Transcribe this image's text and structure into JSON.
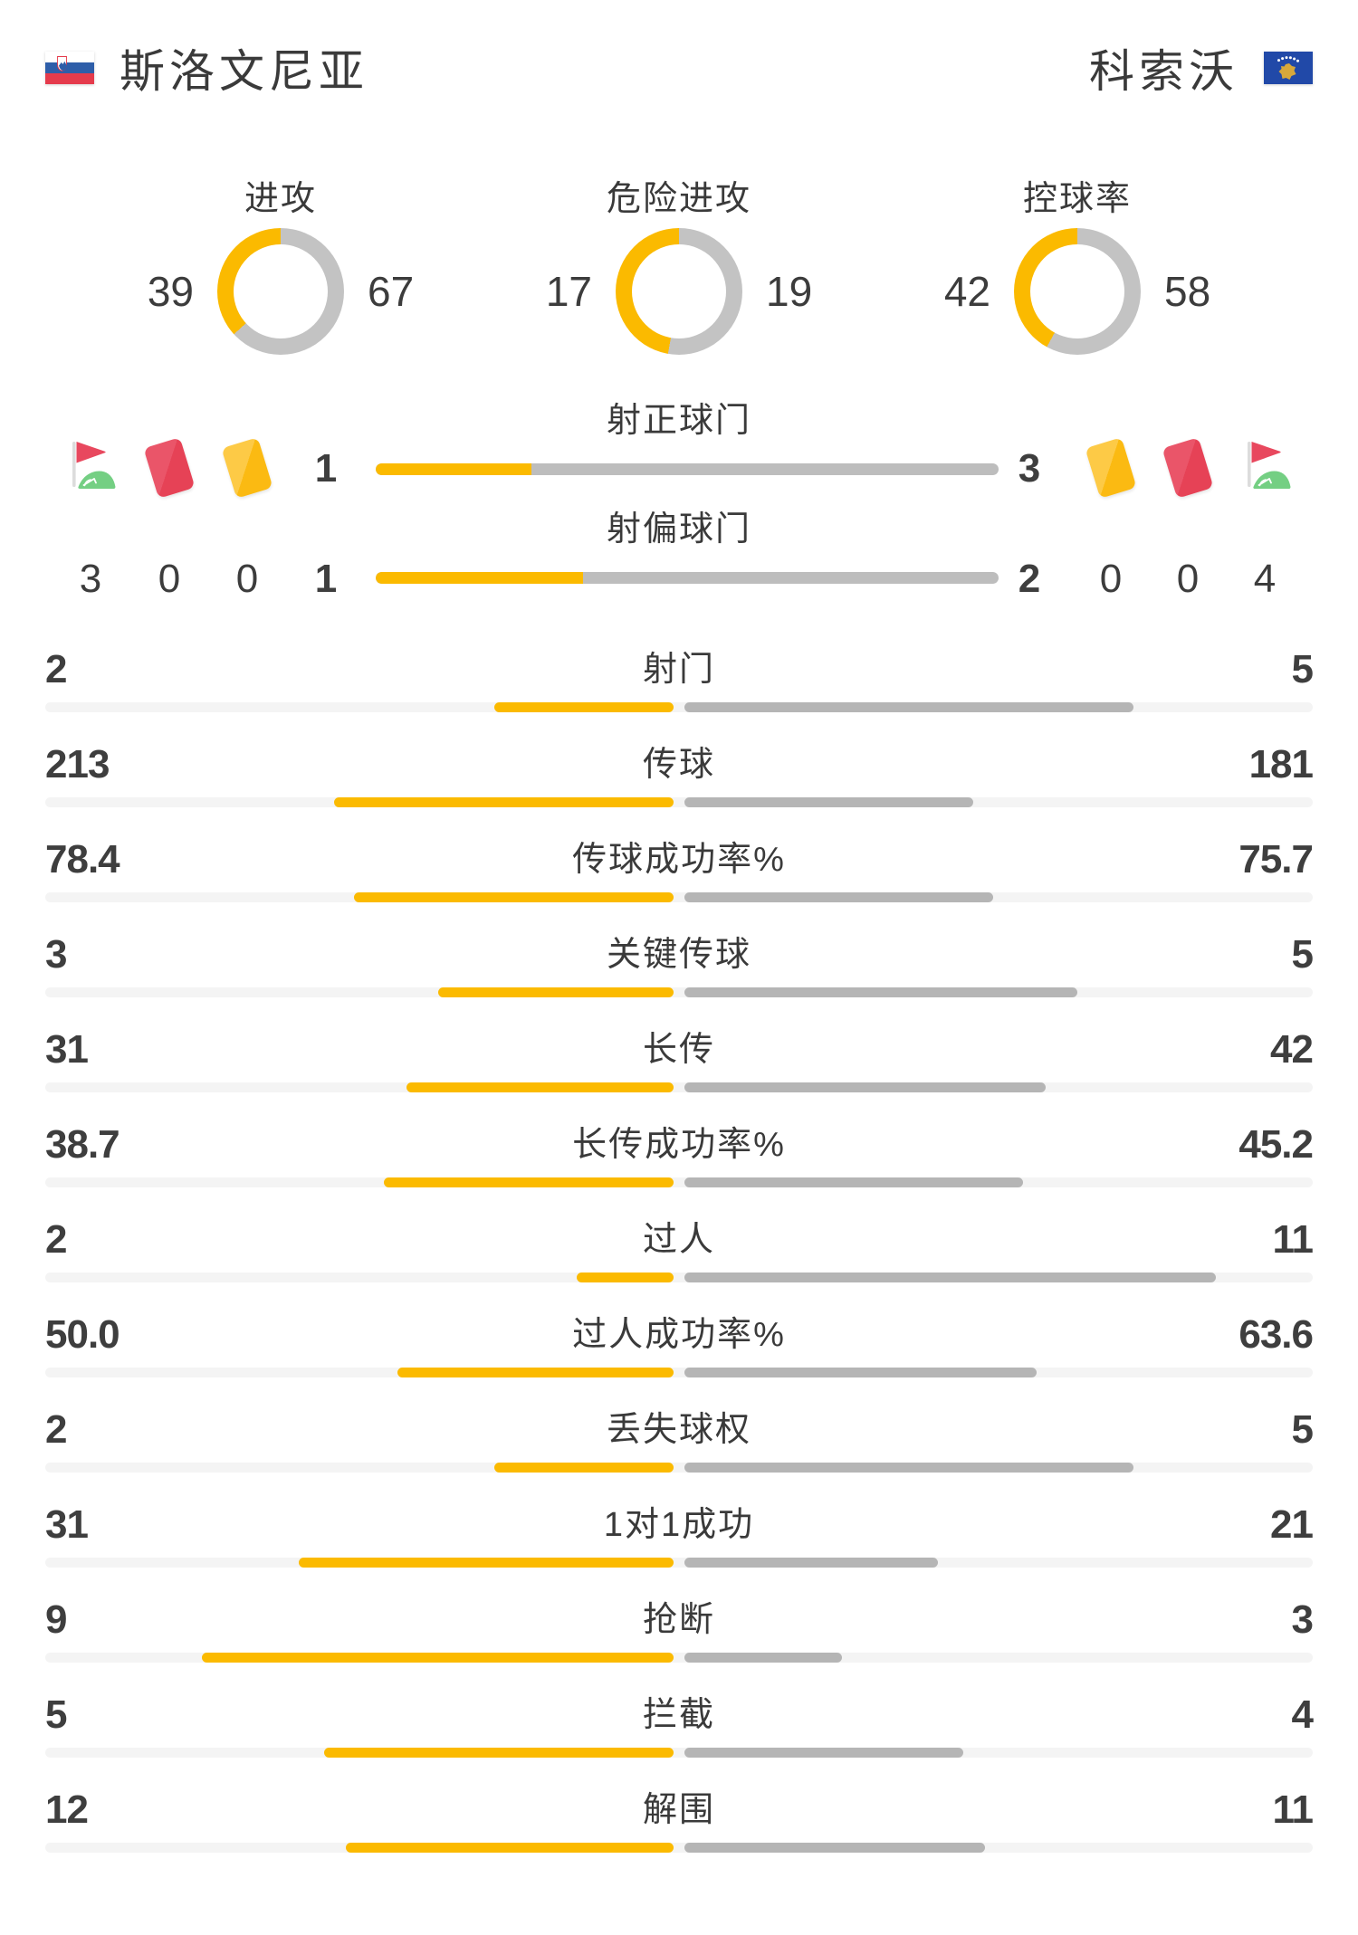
{
  "header": {
    "home": {
      "name": "斯洛文尼亚"
    },
    "away": {
      "name": "科索沃"
    }
  },
  "donuts": [
    {
      "label": "进攻",
      "home": "39",
      "away": "67"
    },
    {
      "label": "危险进攻",
      "home": "17",
      "away": "19"
    },
    {
      "label": "控球率",
      "home": "42",
      "away": "58"
    }
  ],
  "shot_bars": [
    {
      "label": "射正球门",
      "home": "1",
      "away": "3"
    },
    {
      "label": "射偏球门",
      "home": "1",
      "away": "2"
    }
  ],
  "discipline": {
    "home": [
      {
        "type": "corner",
        "value": "3"
      },
      {
        "type": "red-card",
        "value": "0"
      },
      {
        "type": "yellow-card",
        "value": "0"
      }
    ],
    "away": [
      {
        "type": "yellow-card",
        "value": "0"
      },
      {
        "type": "red-card",
        "value": "0"
      },
      {
        "type": "corner",
        "value": "4"
      }
    ]
  },
  "stats": [
    {
      "label": "射门",
      "home": "2",
      "away": "5"
    },
    {
      "label": "传球",
      "home": "213",
      "away": "181"
    },
    {
      "label": "传球成功率%",
      "home": "78.4",
      "away": "75.7"
    },
    {
      "label": "关键传球",
      "home": "3",
      "away": "5"
    },
    {
      "label": "长传",
      "home": "31",
      "away": "42"
    },
    {
      "label": "长传成功率%",
      "home": "38.7",
      "away": "45.2"
    },
    {
      "label": "过人",
      "home": "2",
      "away": "11"
    },
    {
      "label": "过人成功率%",
      "home": "50.0",
      "away": "63.6"
    },
    {
      "label": "丢失球权",
      "home": "2",
      "away": "5"
    },
    {
      "label": "1对1成功",
      "home": "31",
      "away": "21"
    },
    {
      "label": "抢断",
      "home": "9",
      "away": "3"
    },
    {
      "label": "拦截",
      "home": "5",
      "away": "4"
    },
    {
      "label": "解围",
      "home": "12",
      "away": "11"
    }
  ],
  "colors": {
    "accent_home": "#FBBA00",
    "accent_away_bar": "#B5B5B5",
    "donut_away": "#C3C3C3",
    "shotbar_away": "#BDBDBD",
    "track": "#F4F4F4",
    "card_red": "#E75063",
    "card_yellow": "#FCC32F",
    "flag_green": "#74CF83",
    "flag_red": "#E8485E",
    "text": "#3B3B3B"
  },
  "chart_data": [
    {
      "type": "pie",
      "title": "进攻",
      "categories": [
        "斯洛文尼亚",
        "科索沃"
      ],
      "values": [
        39,
        67
      ]
    },
    {
      "type": "pie",
      "title": "危险进攻",
      "categories": [
        "斯洛文尼亚",
        "科索沃"
      ],
      "values": [
        17,
        19
      ]
    },
    {
      "type": "pie",
      "title": "控球率",
      "categories": [
        "斯洛文尼亚",
        "科索沃"
      ],
      "values": [
        42,
        58
      ]
    },
    {
      "type": "bar",
      "title": "比赛数据对比",
      "categories": [
        "射正球门",
        "射偏球门",
        "射门",
        "传球",
        "传球成功率%",
        "关键传球",
        "长传",
        "长传成功率%",
        "过人",
        "过人成功率%",
        "丢失球权",
        "1对1成功",
        "抢断",
        "拦截",
        "解围",
        "角球",
        "红牌",
        "黄牌"
      ],
      "series": [
        {
          "name": "斯洛文尼亚",
          "values": [
            1,
            1,
            2,
            213,
            78.4,
            3,
            31,
            38.7,
            2,
            50.0,
            2,
            31,
            9,
            5,
            12,
            3,
            0,
            0
          ]
        },
        {
          "name": "科索沃",
          "values": [
            3,
            2,
            5,
            181,
            75.7,
            5,
            42,
            45.2,
            11,
            63.6,
            5,
            21,
            3,
            4,
            11,
            4,
            0,
            0
          ]
        }
      ],
      "legend_position": "top",
      "grid": false
    }
  ]
}
